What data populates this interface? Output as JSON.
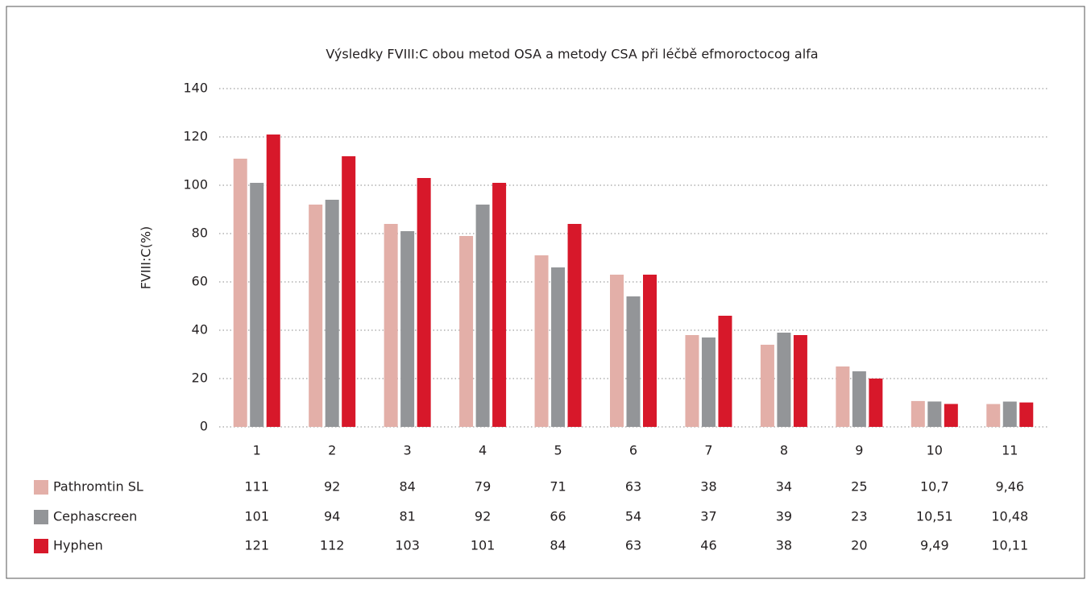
{
  "chart_data": {
    "type": "bar",
    "title": "Výsledky FVIII:C obou metod OSA a metody CSA při léčbě efmoroctocog alfa",
    "y_label": "FVIII:C(%)",
    "categories": [
      "1",
      "2",
      "3",
      "4",
      "5",
      "6",
      "7",
      "8",
      "9",
      "10",
      "11"
    ],
    "series": [
      {
        "name": "Pathromtin SL",
        "color": "#e3afa8",
        "values": [
          111,
          92,
          84,
          79,
          71,
          63,
          38,
          34,
          25,
          10.7,
          9.46
        ],
        "value_labels": [
          "111",
          "92",
          "84",
          "79",
          "71",
          "63",
          "38",
          "34",
          "25",
          "10,7",
          "9,46"
        ]
      },
      {
        "name": "Cephascreen",
        "color": "#939598",
        "values": [
          101,
          94,
          81,
          92,
          66,
          54,
          37,
          39,
          23,
          10.51,
          10.48
        ],
        "value_labels": [
          "101",
          "94",
          "81",
          "92",
          "66",
          "54",
          "37",
          "39",
          "23",
          "10,51",
          "10,48"
        ]
      },
      {
        "name": "Hyphen",
        "color": "#d7182a",
        "values": [
          121,
          112,
          103,
          101,
          84,
          63,
          46,
          38,
          20,
          9.49,
          10.11
        ],
        "value_labels": [
          "121",
          "112",
          "103",
          "101",
          "84",
          "63",
          "46",
          "38",
          "20",
          "9,49",
          "10,11"
        ]
      }
    ],
    "ylim": [
      0,
      140
    ],
    "yticks": [
      0,
      20,
      40,
      60,
      80,
      100,
      120,
      140
    ],
    "grid": true
  }
}
